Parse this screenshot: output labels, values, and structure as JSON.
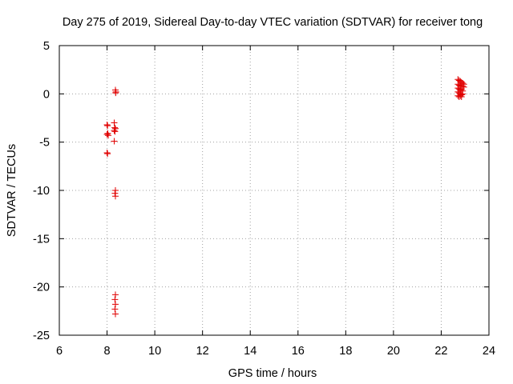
{
  "chart_data": {
    "type": "scatter",
    "title": "Day 275 of 2019, Sidereal Day-to-day VTEC variation (SDTVAR) for receiver tong",
    "xlabel": "GPS time / hours",
    "ylabel": "SDTVAR / TECUs",
    "xlim": [
      6,
      24
    ],
    "ylim": [
      -25,
      5
    ],
    "xticks": [
      6,
      8,
      10,
      12,
      14,
      16,
      18,
      20,
      22,
      24
    ],
    "yticks": [
      5,
      0,
      -5,
      -10,
      -15,
      -20,
      -25
    ],
    "grid": true,
    "marker": "plus",
    "series": [
      {
        "color": "#e00000",
        "points": [
          [
            8.35,
            0.4
          ],
          [
            8.37,
            0.2
          ],
          [
            8.36,
            0.1
          ],
          [
            8.0,
            -3.2
          ],
          [
            8.02,
            -3.3
          ],
          [
            8.03,
            -4.1
          ],
          [
            8.0,
            -4.2
          ],
          [
            8.05,
            -4.3
          ],
          [
            8.0,
            -6.1
          ],
          [
            8.02,
            -6.2
          ],
          [
            8.3,
            -3.0
          ],
          [
            8.32,
            -3.5
          ],
          [
            8.35,
            -3.6
          ],
          [
            8.3,
            -3.8
          ],
          [
            8.33,
            -3.9
          ],
          [
            8.3,
            -4.9
          ],
          [
            8.35,
            -10.0
          ],
          [
            8.33,
            -10.3
          ],
          [
            8.35,
            -10.6
          ],
          [
            8.35,
            -20.8
          ],
          [
            8.33,
            -21.3
          ],
          [
            8.35,
            -21.8
          ],
          [
            8.33,
            -22.3
          ],
          [
            8.35,
            -22.8
          ],
          [
            22.7,
            1.5
          ],
          [
            22.75,
            1.4
          ],
          [
            22.8,
            1.3
          ],
          [
            22.85,
            1.2
          ],
          [
            22.9,
            1.1
          ],
          [
            22.95,
            1.0
          ],
          [
            22.7,
            1.0
          ],
          [
            22.75,
            0.9
          ],
          [
            22.8,
            0.8
          ],
          [
            22.9,
            0.8
          ],
          [
            22.95,
            0.7
          ],
          [
            22.7,
            0.6
          ],
          [
            22.75,
            0.5
          ],
          [
            22.8,
            0.4
          ],
          [
            22.85,
            0.5
          ],
          [
            22.9,
            0.3
          ],
          [
            22.7,
            0.2
          ],
          [
            22.75,
            0.1
          ],
          [
            22.8,
            0.0
          ],
          [
            22.85,
            -0.1
          ],
          [
            22.9,
            0.0
          ],
          [
            22.7,
            -0.2
          ],
          [
            22.75,
            -0.3
          ],
          [
            22.8,
            -0.2
          ],
          [
            22.85,
            -0.3
          ]
        ]
      }
    ]
  }
}
